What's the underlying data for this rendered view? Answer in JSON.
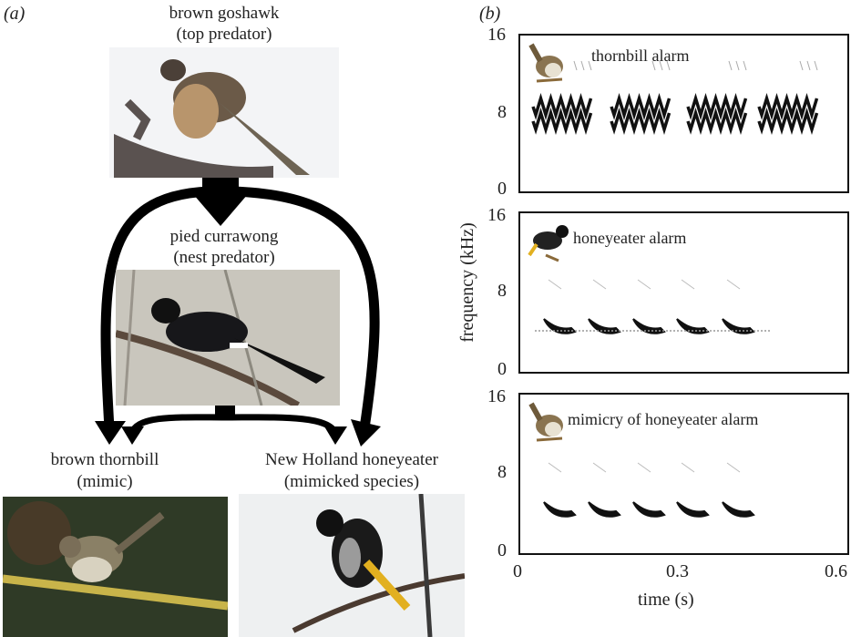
{
  "panel_a": {
    "label": "(a)",
    "species": [
      {
        "name": "brown goshawk",
        "role": "(top predator)"
      },
      {
        "name": "pied currawong",
        "role": "(nest predator)"
      },
      {
        "name": "brown thornbill",
        "role": "(mimic)"
      },
      {
        "name": "New Holland honeyeater",
        "role": "(mimicked species)"
      }
    ]
  },
  "panel_b": {
    "label": "(b)",
    "ylabel": "frequency (kHz)",
    "xlabel": "time (s)",
    "yticks": [
      "16",
      "8",
      "0"
    ],
    "xticks": [
      "0",
      "0.3",
      "0.6"
    ],
    "spectrograms": [
      {
        "title": "thornbill alarm",
        "icon": "thornbill-icon"
      },
      {
        "title": "honeyeater alarm",
        "icon": "honeyeater-icon"
      },
      {
        "title": "mimicry of honeyeater alarm",
        "icon": "thornbill-icon"
      }
    ]
  }
}
